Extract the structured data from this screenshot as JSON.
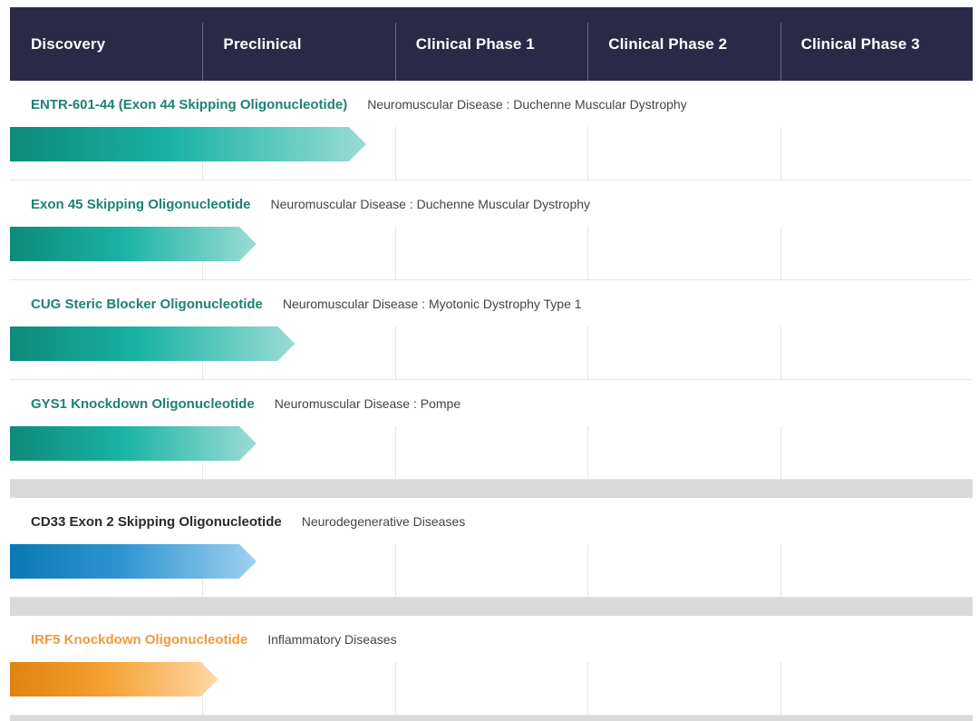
{
  "chart_data": {
    "type": "bar",
    "orientation": "horizontal",
    "stages": [
      "Discovery",
      "Preclinical",
      "Clinical Phase 1",
      "Clinical Phase 2",
      "Clinical Phase 3"
    ],
    "programs": [
      {
        "name": "ENTR-601-44 (Exon 44 Skipping Oligonucleotide)",
        "indication": "Neuromuscular Disease : Duchenne Muscular Dystrophy",
        "progress": 1.85,
        "group": "neuromuscular"
      },
      {
        "name": "Exon 45 Skipping Oligonucleotide",
        "indication": "Neuromuscular Disease : Duchenne Muscular Dystrophy",
        "progress": 1.28,
        "group": "neuromuscular"
      },
      {
        "name": "CUG Steric Blocker Oligonucleotide",
        "indication": "Neuromuscular Disease : Myotonic Dystrophy Type 1",
        "progress": 1.48,
        "group": "neuromuscular"
      },
      {
        "name": "GYS1 Knockdown Oligonucleotide",
        "indication": "Neuromuscular Disease : Pompe",
        "progress": 1.28,
        "group": "neuromuscular"
      },
      {
        "name": "CD33 Exon 2 Skipping Oligonucleotide",
        "indication": "Neurodegenerative Diseases",
        "progress": 1.28,
        "group": "neurodegenerative"
      },
      {
        "name": "IRF5 Knockdown Oligonucleotide",
        "indication": "Inflammatory Diseases",
        "progress": 1.08,
        "group": "inflammatory"
      }
    ],
    "group_colors": {
      "neuromuscular": {
        "text": "#1e8273",
        "from": "#0e8a7a",
        "mid": "#18b3a4",
        "to": "#9adcd4"
      },
      "neurodegenerative": {
        "text": "#2b2b2b",
        "from": "#0a78b4",
        "mid": "#2f95d2",
        "to": "#9ed0ee"
      },
      "inflammatory": {
        "text": "#ef9a3c",
        "from": "#e0820f",
        "mid": "#f5a030",
        "to": "#ffd7a8"
      }
    },
    "header_color": "#2a2a48"
  }
}
